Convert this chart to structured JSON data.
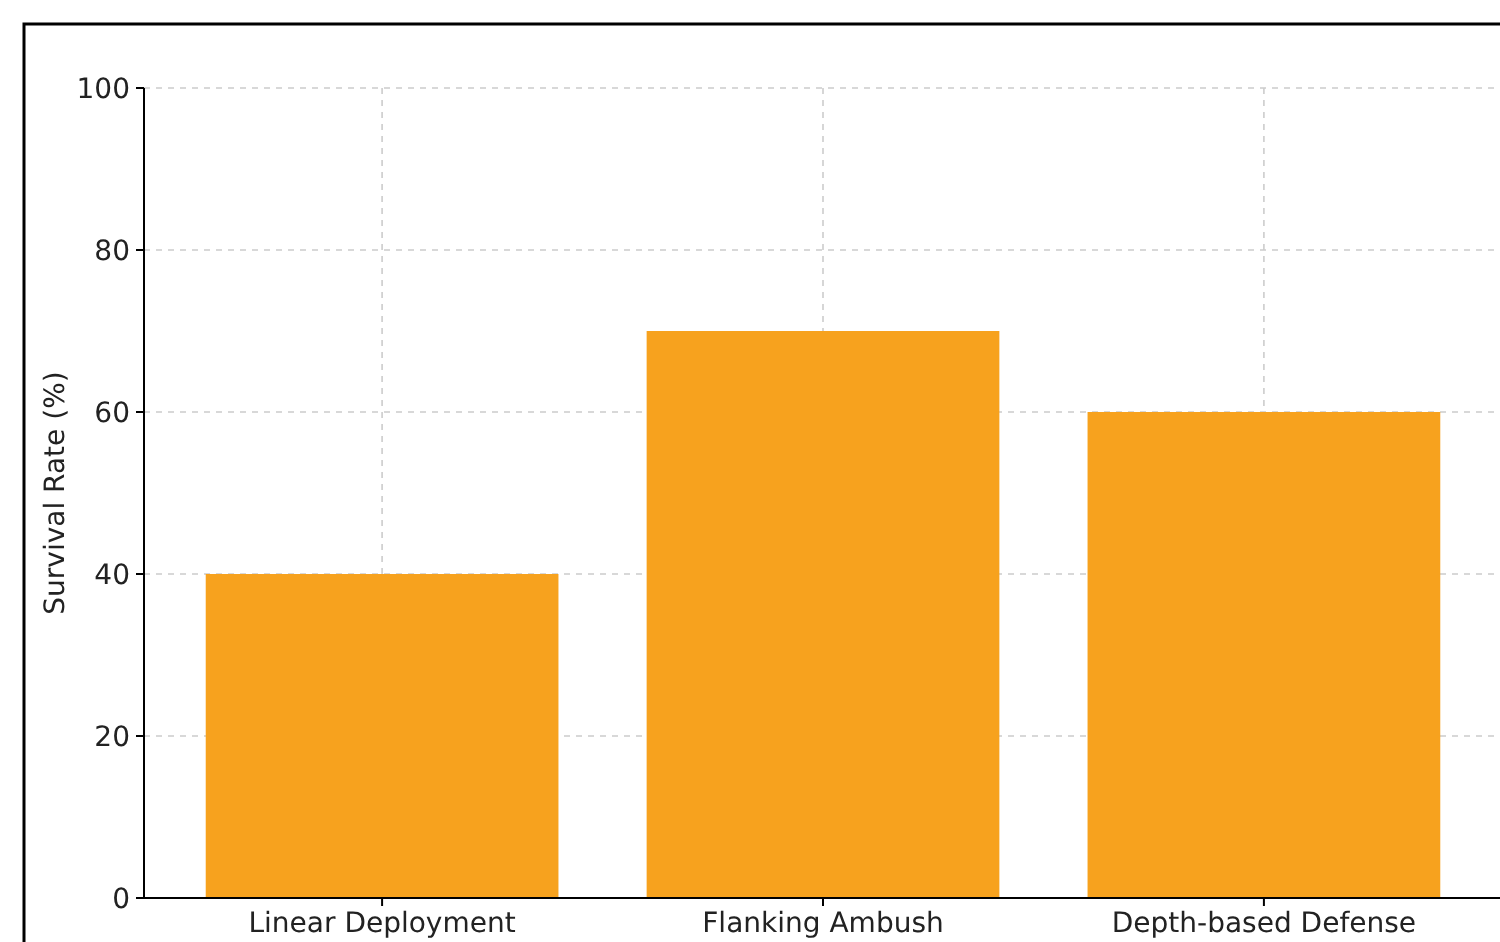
{
  "chart_data": {
    "type": "bar",
    "ylabel": "Survival Rate (%)",
    "categories": [
      "Linear Deployment",
      "Flanking Ambush",
      "Depth-based Defense"
    ],
    "values": [
      40,
      70,
      60
    ],
    "color": "#f7a21e",
    "ylim": [
      0,
      100
    ],
    "yticks": [
      0,
      20,
      40,
      60,
      80,
      100
    ],
    "grid": true
  }
}
